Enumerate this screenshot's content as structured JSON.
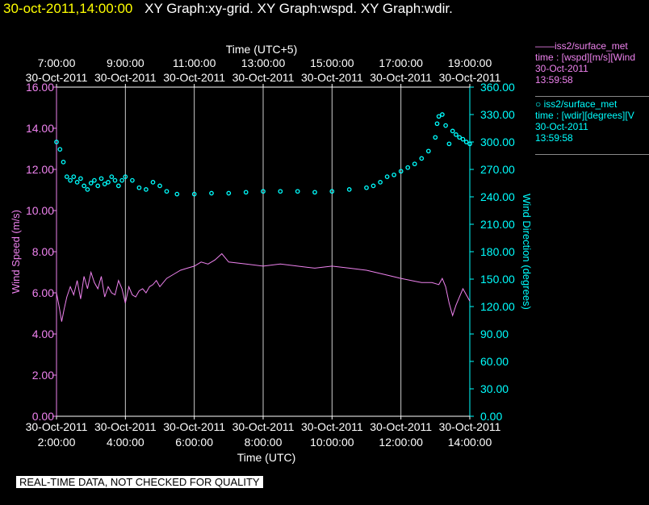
{
  "header": {
    "timestamp": "30-oct-2011,14:00:00",
    "graphs": "XY Graph:xy-grid.  XY Graph:wspd.  XY Graph:wdir."
  },
  "legend": {
    "series1": {
      "title": "iss2/surface_met",
      "field": "time : [wspd][m/s][Wind",
      "date": "30-Oct-2011",
      "time": "13:59:58",
      "color": "#ee82ee"
    },
    "series2": {
      "title": "iss2/surface_met",
      "field": "time : [wdir][degrees][V",
      "date": "30-Oct-2011",
      "time": "13:59:58",
      "color": "#00ffff"
    }
  },
  "footer": "REAL-TIME DATA, NOT CHECKED FOR QUALITY",
  "chart_data": {
    "type": "line",
    "top_axis_title": "Time (UTC+5)",
    "xlabel": "Time (UTC)",
    "ylabel_left": "Wind Speed (m/s)",
    "ylabel_right": "Wind Direction (degrees)",
    "xlim": [
      2.0,
      14.0
    ],
    "ylim_left": [
      0,
      16
    ],
    "ylim_right": [
      0,
      360
    ],
    "grid": "vertical lines only",
    "x_ticks": [
      {
        "x": 2,
        "date": "30-Oct-2011",
        "time": "2:00:00"
      },
      {
        "x": 4,
        "date": "30-Oct-2011",
        "time": "4:00:00"
      },
      {
        "x": 6,
        "date": "30-Oct-2011",
        "time": "6:00:00"
      },
      {
        "x": 8,
        "date": "30-Oct-2011",
        "time": "8:00:00"
      },
      {
        "x": 10,
        "date": "30-Oct-2011",
        "time": "10:00:00"
      },
      {
        "x": 12,
        "date": "30-Oct-2011",
        "time": "12:00:00"
      },
      {
        "x": 14,
        "date": "30-Oct-2011",
        "time": "14:00:00"
      }
    ],
    "top_ticks": [
      {
        "x": 2,
        "time": "7:00:00",
        "date": "30-Oct-2011"
      },
      {
        "x": 4,
        "time": "9:00:00",
        "date": "30-Oct-2011"
      },
      {
        "x": 6,
        "time": "11:00:00",
        "date": "30-Oct-2011"
      },
      {
        "x": 8,
        "time": "13:00:00",
        "date": "30-Oct-2011"
      },
      {
        "x": 10,
        "time": "15:00:00",
        "date": "30-Oct-2011"
      },
      {
        "x": 12,
        "time": "17:00:00",
        "date": "30-Oct-2011"
      },
      {
        "x": 14,
        "time": "19:00:00",
        "date": "30-Oct-2011"
      }
    ],
    "left_ticks": [
      "0.00",
      "2.00",
      "4.00",
      "6.00",
      "8.00",
      "10.00",
      "12.00",
      "14.00",
      "16.00"
    ],
    "right_ticks": [
      "0.00",
      "30.00",
      "60.00",
      "90.00",
      "120.00",
      "150.00",
      "180.00",
      "210.00",
      "240.00",
      "270.00",
      "300.00",
      "330.00",
      "360.00"
    ],
    "series": [
      {
        "name": "iss2/surface_met wspd",
        "axis": "left",
        "style": "line",
        "color": "#ee82ee",
        "x": [
          2.0,
          2.08,
          2.15,
          2.22,
          2.3,
          2.4,
          2.5,
          2.6,
          2.7,
          2.8,
          2.9,
          3.0,
          3.1,
          3.2,
          3.3,
          3.4,
          3.5,
          3.6,
          3.7,
          3.8,
          3.9,
          4.0,
          4.1,
          4.2,
          4.3,
          4.4,
          4.5,
          4.6,
          4.7,
          4.8,
          4.9,
          5.0,
          5.2,
          5.4,
          5.6,
          5.8,
          6.0,
          6.2,
          6.4,
          6.6,
          6.8,
          7.0,
          7.5,
          8.0,
          8.5,
          9.0,
          9.5,
          10.0,
          10.5,
          11.0,
          11.5,
          12.0,
          12.3,
          12.6,
          12.9,
          13.1,
          13.2,
          13.3,
          13.4,
          13.5,
          13.6,
          13.7,
          13.8,
          13.9,
          14.0
        ],
        "y": [
          6.0,
          5.3,
          4.6,
          5.2,
          5.8,
          6.3,
          5.9,
          6.6,
          5.7,
          6.8,
          6.2,
          7.0,
          6.5,
          6.2,
          6.8,
          5.8,
          6.3,
          6.0,
          5.9,
          6.6,
          6.2,
          5.5,
          6.3,
          5.9,
          5.8,
          6.1,
          6.2,
          6.0,
          6.3,
          6.4,
          6.6,
          6.3,
          6.7,
          6.9,
          7.1,
          7.2,
          7.3,
          7.5,
          7.4,
          7.6,
          7.9,
          7.5,
          7.4,
          7.3,
          7.4,
          7.3,
          7.2,
          7.3,
          7.2,
          7.1,
          6.9,
          6.7,
          6.6,
          6.5,
          6.5,
          6.4,
          6.7,
          6.3,
          5.5,
          4.9,
          5.4,
          5.8,
          6.2,
          5.9,
          5.6
        ]
      },
      {
        "name": "iss2/surface_met wdir",
        "axis": "right",
        "style": "points",
        "color": "#00ffff",
        "x": [
          2.0,
          2.1,
          2.2,
          2.3,
          2.4,
          2.5,
          2.6,
          2.7,
          2.8,
          2.9,
          3.0,
          3.1,
          3.2,
          3.3,
          3.4,
          3.5,
          3.6,
          3.7,
          3.8,
          3.9,
          4.0,
          4.2,
          4.4,
          4.6,
          4.8,
          5.0,
          5.2,
          5.5,
          6.0,
          6.5,
          7.0,
          7.5,
          8.0,
          8.5,
          9.0,
          9.5,
          10.0,
          10.5,
          11.0,
          11.2,
          11.4,
          11.6,
          11.8,
          12.0,
          12.2,
          12.4,
          12.6,
          12.8,
          13.0,
          13.05,
          13.1,
          13.2,
          13.3,
          13.4,
          13.5,
          13.6,
          13.7,
          13.8,
          13.9,
          14.0
        ],
        "y": [
          300,
          292,
          278,
          262,
          258,
          262,
          256,
          260,
          252,
          248,
          255,
          258,
          252,
          260,
          254,
          256,
          262,
          258,
          252,
          258,
          262,
          258,
          250,
          248,
          256,
          252,
          246,
          243,
          243,
          244,
          244,
          245,
          246,
          246,
          246,
          245,
          246,
          248,
          250,
          252,
          256,
          262,
          264,
          268,
          272,
          276,
          282,
          290,
          305,
          320,
          328,
          330,
          318,
          298,
          312,
          308,
          305,
          303,
          300,
          298
        ]
      }
    ]
  }
}
